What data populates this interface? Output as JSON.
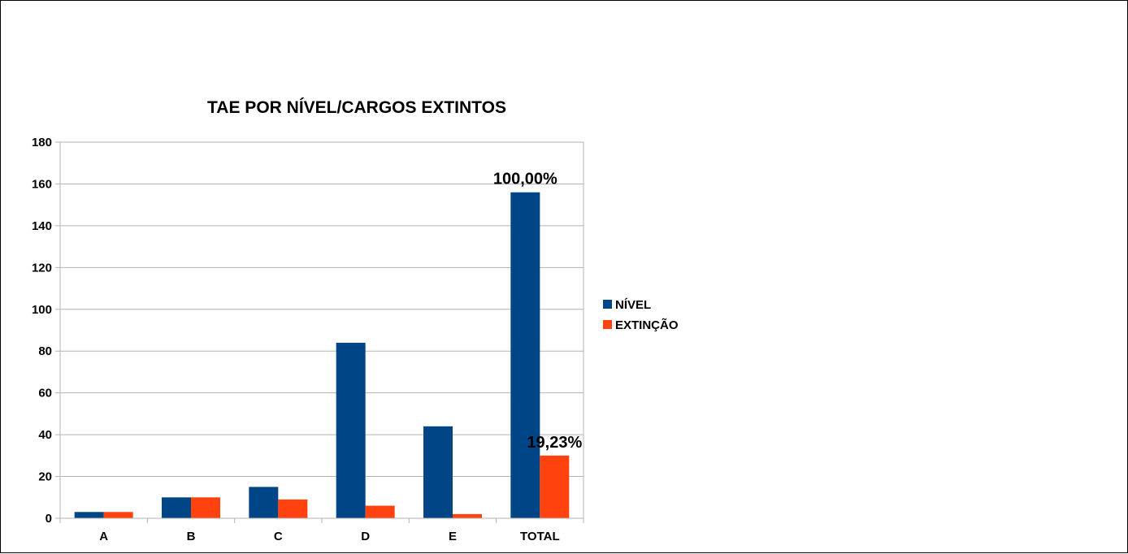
{
  "chart_data": {
    "type": "bar",
    "title": "TAE POR NÍVEL/CARGOS EXTINTOS",
    "categories": [
      "A",
      "B",
      "C",
      "D",
      "E",
      "TOTAL"
    ],
    "series": [
      {
        "name": "NÍVEL",
        "color": "#004586",
        "values": [
          3,
          10,
          15,
          84,
          44,
          156
        ]
      },
      {
        "name": "EXTINÇÃO",
        "color": "#FF420E",
        "values": [
          3,
          10,
          9,
          6,
          2,
          30
        ]
      }
    ],
    "ylim": [
      0,
      180
    ],
    "yticks": [
      0,
      20,
      40,
      60,
      80,
      100,
      120,
      140,
      160,
      180
    ],
    "grid": true,
    "legend": "right",
    "annotations": [
      {
        "series": 0,
        "category": "TOTAL",
        "text": "100,00%"
      },
      {
        "series": 1,
        "category": "TOTAL",
        "text": "19,23%"
      }
    ]
  }
}
